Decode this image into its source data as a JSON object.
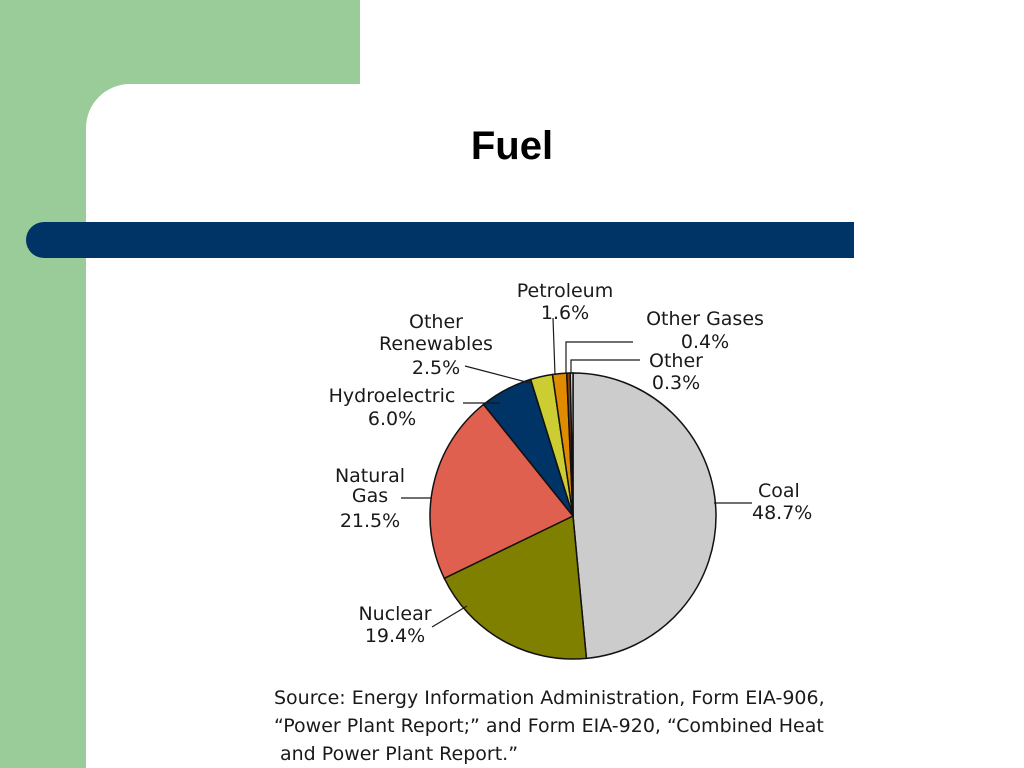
{
  "slide": {
    "title": "Fuel",
    "colors": {
      "background_green": "#99cc99",
      "bar": "#003366",
      "panel": "#ffffff"
    },
    "source_lines": [
      "Source: Energy Information Administration, Form EIA-906,",
      "“Power Plant Report;” and Form EIA-920, “Combined Heat",
      "and Power Plant Report.”"
    ]
  },
  "chart_data": {
    "type": "pie",
    "title": "",
    "slices": [
      {
        "name": "Coal",
        "value": 48.7,
        "label": "48.7%",
        "color": "#cccccc"
      },
      {
        "name": "Nuclear",
        "value": 19.4,
        "label": "19.4%",
        "color": "#808000"
      },
      {
        "name": "Natural Gas",
        "value": 21.5,
        "label": "21.5%",
        "color": "#e06050"
      },
      {
        "name": "Hydroelectric",
        "value": 6.0,
        "label": "6.0%",
        "color": "#003366"
      },
      {
        "name": "Other Renewables",
        "value": 2.5,
        "label": "2.5%",
        "color": "#cccc33"
      },
      {
        "name": "Petroleum",
        "value": 1.6,
        "label": "1.6%",
        "color": "#e08a00"
      },
      {
        "name": "Other Gases",
        "value": 0.4,
        "label": "0.4%",
        "color": "#8b4513"
      },
      {
        "name": "Other",
        "value": 0.3,
        "label": "0.3%",
        "color": "#f0f0f0"
      }
    ]
  }
}
